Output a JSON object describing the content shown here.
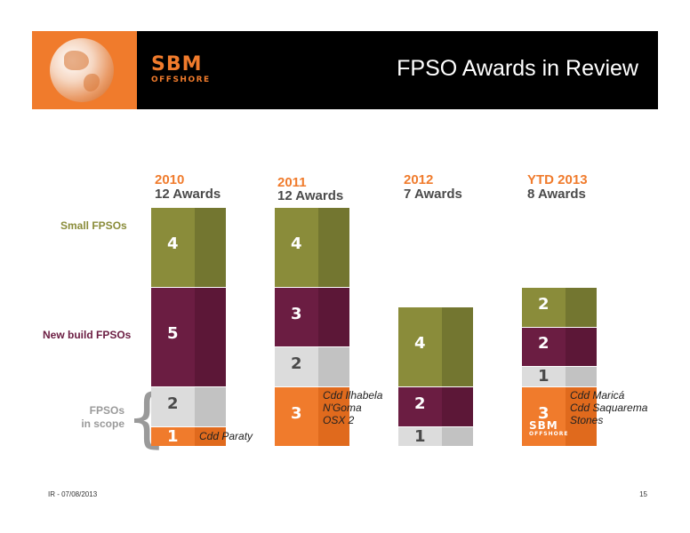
{
  "header": {
    "title": "FPSO Awards in Review",
    "logo_text": "SBM",
    "logo_sub": "OFFSHORE"
  },
  "row_labels": {
    "small": "Small FPSOs",
    "new_build": "New build FPSOs",
    "scope_line1": "FPSOs",
    "scope_line2": "in scope"
  },
  "colors": {
    "small": "#8a8c3a",
    "new_build": "#6b1d42",
    "scope_light": "#dcdcdc",
    "scope_orange": "#f07b2c",
    "header_bg": "#000000"
  },
  "chart_data": {
    "type": "bar",
    "stacked": true,
    "categories": [
      "2010",
      "2011",
      "2012",
      "YTD 2013"
    ],
    "totals_labels": [
      "12 Awards",
      "12 Awards",
      "7 Awards",
      "8 Awards"
    ],
    "series": [
      {
        "name": "FPSOs in scope (orange)",
        "values": [
          1,
          3,
          0,
          3
        ]
      },
      {
        "name": "FPSOs in scope",
        "values": [
          2,
          2,
          1,
          1
        ]
      },
      {
        "name": "New build FPSOs",
        "values": [
          5,
          3,
          2,
          2
        ]
      },
      {
        "name": "Small FPSOs",
        "values": [
          4,
          4,
          4,
          2
        ]
      }
    ],
    "notes": [
      [
        "Cdd Paraty"
      ],
      [
        "Cdd Ilhabela",
        "N'Goma",
        "OSX 2"
      ],
      [],
      [
        "Cdd Maricá",
        "Cdd Saquarema",
        "Stones"
      ]
    ]
  },
  "footer": {
    "left": "IR - 07/08/2013",
    "page": "15"
  }
}
